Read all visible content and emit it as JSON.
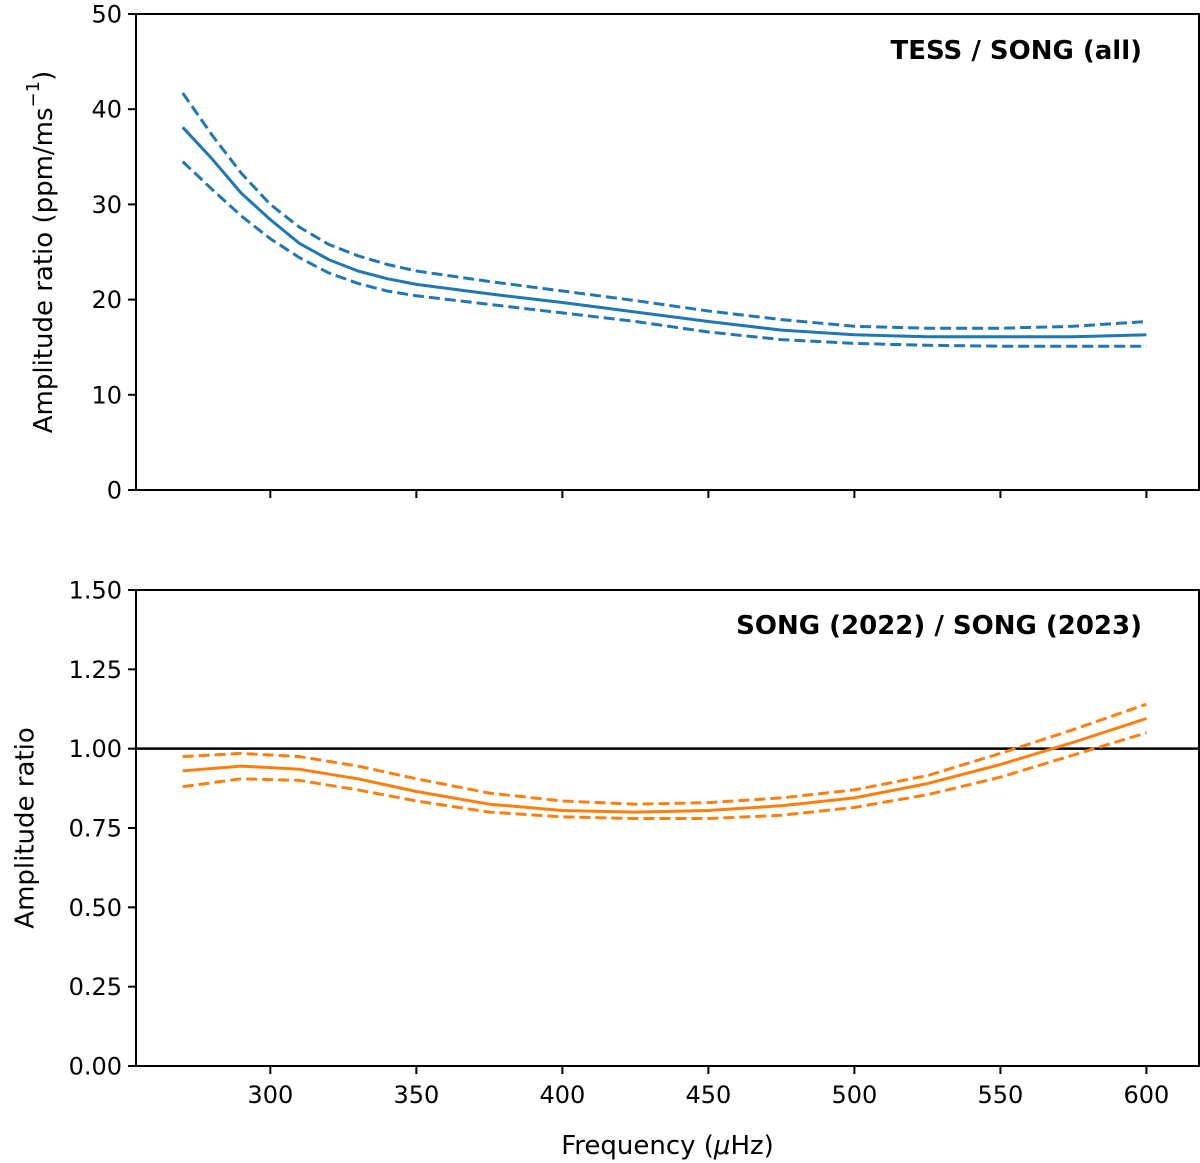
{
  "chart_data": [
    {
      "type": "line",
      "title": "TESS / SONG (all)",
      "xlabel": "",
      "ylabel": "Amplitude ratio (ppm/ms",
      "ylabel_sup": "−1",
      "ylabel_close": ")",
      "xlim": [
        254,
        618
      ],
      "ylim": [
        0,
        50
      ],
      "yticks": [
        0,
        10,
        20,
        30,
        40,
        50
      ],
      "ytick_labels": [
        "0",
        "10",
        "20",
        "30",
        "40",
        "50"
      ],
      "xticks": [
        300,
        350,
        400,
        450,
        500,
        550,
        600
      ],
      "color": "#1f77b4",
      "x": [
        270,
        280,
        290,
        300,
        310,
        320,
        330,
        340,
        350,
        375,
        400,
        425,
        450,
        475,
        500,
        525,
        550,
        575,
        600
      ],
      "series": [
        {
          "name": "upper",
          "style": "dashed",
          "values": [
            41.7,
            37.3,
            33.3,
            30.0,
            27.6,
            25.8,
            24.6,
            23.7,
            23.0,
            21.9,
            20.9,
            19.9,
            18.8,
            17.9,
            17.2,
            17.0,
            17.0,
            17.2,
            17.7
          ]
        },
        {
          "name": "fit",
          "style": "solid",
          "values": [
            38.1,
            34.8,
            31.2,
            28.4,
            25.9,
            24.2,
            23.0,
            22.2,
            21.6,
            20.6,
            19.7,
            18.7,
            17.7,
            16.8,
            16.3,
            16.1,
            16.1,
            16.1,
            16.3
          ]
        },
        {
          "name": "lower",
          "style": "dashed",
          "values": [
            34.5,
            31.6,
            28.8,
            26.4,
            24.4,
            22.8,
            21.7,
            20.9,
            20.4,
            19.5,
            18.6,
            17.7,
            16.6,
            15.8,
            15.4,
            15.2,
            15.1,
            15.1,
            15.1
          ]
        }
      ]
    },
    {
      "type": "line",
      "title": "SONG (2022) / SONG (2023)",
      "xlabel": "Frequency (",
      "xlabel_mu": "μ",
      "xlabel_rest": "Hz)",
      "ylabel": "Amplitude ratio",
      "xlim": [
        254,
        618
      ],
      "ylim": [
        0,
        1.5
      ],
      "yticks": [
        0,
        0.25,
        0.5,
        0.75,
        1.0,
        1.25,
        1.5
      ],
      "ytick_labels": [
        "0.00",
        "0.25",
        "0.50",
        "0.75",
        "1.00",
        "1.25",
        "1.50"
      ],
      "xticks": [
        300,
        350,
        400,
        450,
        500,
        550,
        600
      ],
      "xtick_labels": [
        "300",
        "350",
        "400",
        "450",
        "500",
        "550",
        "600"
      ],
      "reference_line": 1.0,
      "color": "#ff7f0e",
      "x": [
        270,
        290,
        310,
        330,
        350,
        375,
        400,
        425,
        450,
        475,
        500,
        525,
        550,
        575,
        600
      ],
      "series": [
        {
          "name": "upper",
          "style": "dashed",
          "values": [
            0.975,
            0.985,
            0.975,
            0.945,
            0.905,
            0.86,
            0.835,
            0.825,
            0.83,
            0.845,
            0.87,
            0.915,
            0.985,
            1.06,
            1.14
          ]
        },
        {
          "name": "fit",
          "style": "solid",
          "values": [
            0.93,
            0.945,
            0.935,
            0.905,
            0.865,
            0.825,
            0.805,
            0.8,
            0.805,
            0.82,
            0.845,
            0.89,
            0.95,
            1.02,
            1.095
          ]
        },
        {
          "name": "lower",
          "style": "dashed",
          "values": [
            0.88,
            0.905,
            0.9,
            0.87,
            0.835,
            0.8,
            0.785,
            0.78,
            0.78,
            0.79,
            0.815,
            0.855,
            0.91,
            0.98,
            1.05
          ]
        }
      ]
    }
  ]
}
